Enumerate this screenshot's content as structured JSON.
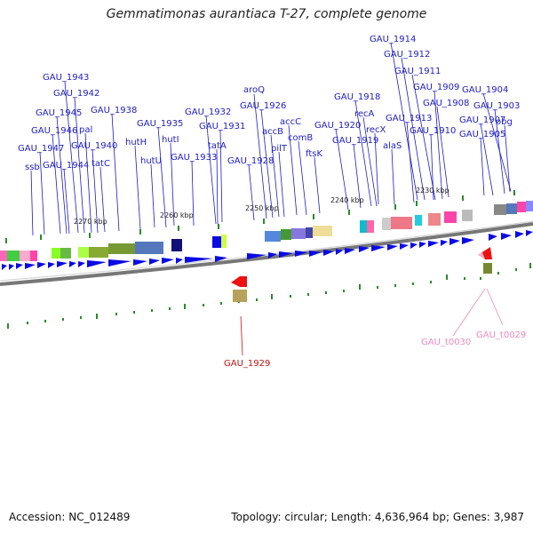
{
  "title": "Gemmatimonas aurantiaca T-27, complete genome",
  "accession": "Accession: NC_012489",
  "summary": "Topology: circular; Length: 4,636,964 bp; Genes: 3,987",
  "kbp_labels": [
    "2270 kbp",
    "2260 kbp",
    "2250 kbp",
    "2240 kbp",
    "2230 kbp"
  ],
  "gene_labels": [
    "GAU_1914",
    "GAU_1912",
    "GAU_1943",
    "GAU_1911",
    "GAU_1942",
    "GAU_1909",
    "GAU_1904",
    "aroQ",
    "GAU_1908",
    "GAU_1903",
    "GAU_1945",
    "GAU_1938",
    "GAU_1926",
    "GAU_1918",
    "GAU_1932",
    "recA",
    "GAU_1913",
    "GAU_1907",
    "obg",
    "GAU_1935",
    "accC",
    "GAU_1920",
    "GAU_1946",
    "pal",
    "GAU_1931",
    "accB",
    "recX",
    "GAU_1910",
    "GAU_1905",
    "hutH",
    "hutI",
    "comB",
    "GAU_1919",
    "GAU_1947",
    "GAU_1940",
    "tatA",
    "pilT",
    "alaS",
    "ftsK",
    "GAU_1933",
    "hutU",
    "tatC",
    "GAU_1944",
    "GAU_1928",
    "ssb"
  ],
  "lower_labels": {
    "red_gene": "GAU_1929",
    "trna_a": "GAU_t0030",
    "trna_b": "GAU_t0029"
  },
  "colors": {
    "gene_label": "#1c1cc8",
    "forward_arrow": "#0a0ae6",
    "trna": "#ee88bb",
    "red_gene": "#cc1111",
    "tick": "#2a8a2a"
  }
}
